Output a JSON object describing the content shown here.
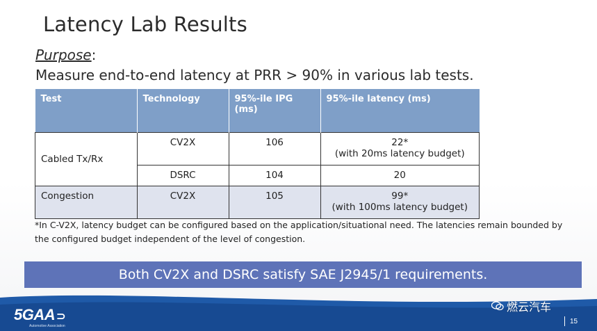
{
  "slide": {
    "title": "Latency Lab Results",
    "purpose_label": "Purpose",
    "purpose_colon": ":",
    "purpose_text": "Measure end-to-end latency at PRR > 90% in various lab tests."
  },
  "table": {
    "headers": [
      "Test",
      "Technology",
      "95%-ile IPG (ms)",
      "95%-ile latency (ms)"
    ],
    "rows": [
      {
        "test": "Cabled Tx/Rx",
        "technology": "CV2X",
        "ipg": "106",
        "latency": "22*",
        "latency_note": "(with 20ms latency budget)"
      },
      {
        "test": "",
        "technology": "DSRC",
        "ipg": "104",
        "latency": "20",
        "latency_note": ""
      },
      {
        "test": "Congestion",
        "technology": "CV2X",
        "ipg": "105",
        "latency": "99*",
        "latency_note": "(with 100ms latency budget)"
      }
    ]
  },
  "footnote": "*In C-V2X, latency budget can be configured based on the application/situational need. The latencies remain bounded by the configured budget independent of the level of congestion.",
  "banner": "Both CV2X and DSRC satisfy SAE J2945/1 requirements.",
  "footer": {
    "logo_text": "5GAA",
    "logo_subtext": "Automotive Association",
    "watermark_text": "燃云汽车",
    "watermark_icon": "wechat-icon",
    "page_number": "15"
  },
  "colors": {
    "table_header": "#7f9fc8",
    "shaded_row": "#dfe3ee",
    "banner": "#5e73b8",
    "footer_band": "#1f5aa8"
  }
}
